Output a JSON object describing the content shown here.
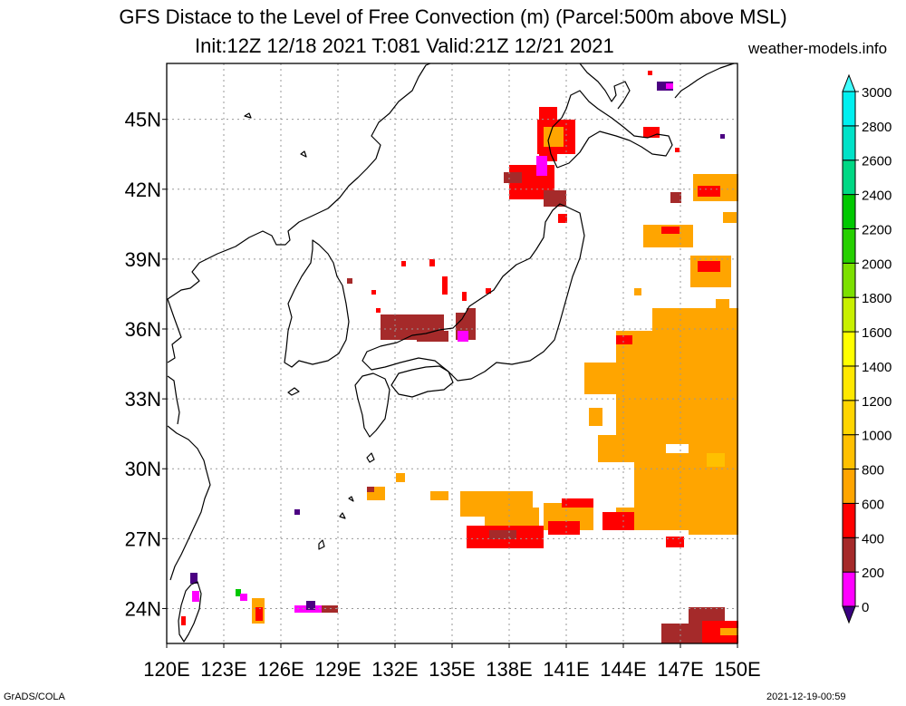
{
  "header": {
    "title_line1": "GFS Distace to the Level of Free Convection (m) (Parcel:500m above MSL)",
    "title_line2": "Init:12Z 12/18 2021 T:081 Valid:21Z 12/21 2021",
    "site": "weather-models.info"
  },
  "footer": {
    "left": "GrADS/COLA",
    "right": "2021-12-19-00:59"
  },
  "map": {
    "lon_labels": [
      "120E",
      "123E",
      "126E",
      "129E",
      "132E",
      "135E",
      "138E",
      "141E",
      "144E",
      "147E",
      "150E"
    ],
    "lat_labels": [
      "45N",
      "42N",
      "39N",
      "36N",
      "33N",
      "30N",
      "27N",
      "24N"
    ],
    "lon_range": [
      120,
      150
    ],
    "lat_range": [
      22.5,
      47.4
    ],
    "grid": true,
    "colors": {
      "c_0_200": "#4b0082",
      "c_200_400": "#ff00ff",
      "c_400_600": "#a52a2a",
      "c_600_800": "#ff0000",
      "c_800_1000": "#ffa500",
      "c_1000_1200": "#ffc000",
      "coast": "#000000"
    }
  },
  "colorbar": {
    "levels": [
      "0",
      "200",
      "400",
      "600",
      "800",
      "1000",
      "1200",
      "1400",
      "1600",
      "1800",
      "2000",
      "2200",
      "2400",
      "2600",
      "2800",
      "3000"
    ],
    "colors": [
      "#3a0080",
      "#ff00ff",
      "#a52a2a",
      "#ff0000",
      "#ffa500",
      "#ffc000",
      "#ffd500",
      "#ffe800",
      "#ffff00",
      "#c8f000",
      "#7ce000",
      "#26d000",
      "#00c800",
      "#00d884",
      "#00e2c8",
      "#00f0f0",
      "#40ffff"
    ],
    "position": "right"
  }
}
